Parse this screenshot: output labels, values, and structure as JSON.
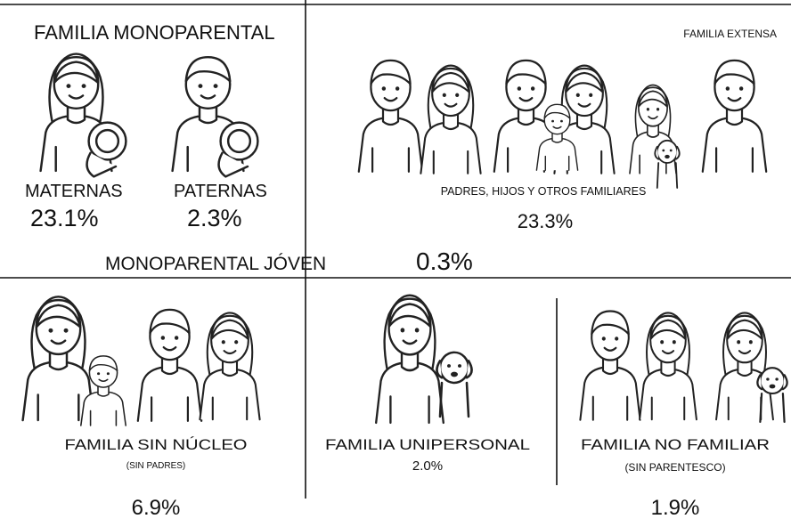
{
  "monoparental": {
    "title": "FAMILIA MONOPARENTAL",
    "maternas": {
      "label": "MATERNAS",
      "percent": "23.1%"
    },
    "paternas": {
      "label": "PATERNAS",
      "percent": "2.3%"
    },
    "joven": {
      "label": "MONOPARENTAL JÓVEN",
      "percent": "0.3%"
    }
  },
  "extensa": {
    "title": "FAMILIA EXTENSA",
    "label": "PADRES, HIJOS Y OTROS FAMILIARES",
    "percent": "23.3%"
  },
  "sin_nucleo": {
    "label": "FAMILIA SIN NÚCLEO",
    "note": "(SIN PADRES)",
    "percent": "6.9%"
  },
  "unipersonal": {
    "label": "FAMILIA UNIPERSONAL",
    "percent": "2.0%"
  },
  "no_familiar": {
    "label": "FAMILIA NO FAMILIAR",
    "note": "(SIN PARENTESCO)",
    "percent": "1.9%"
  }
}
